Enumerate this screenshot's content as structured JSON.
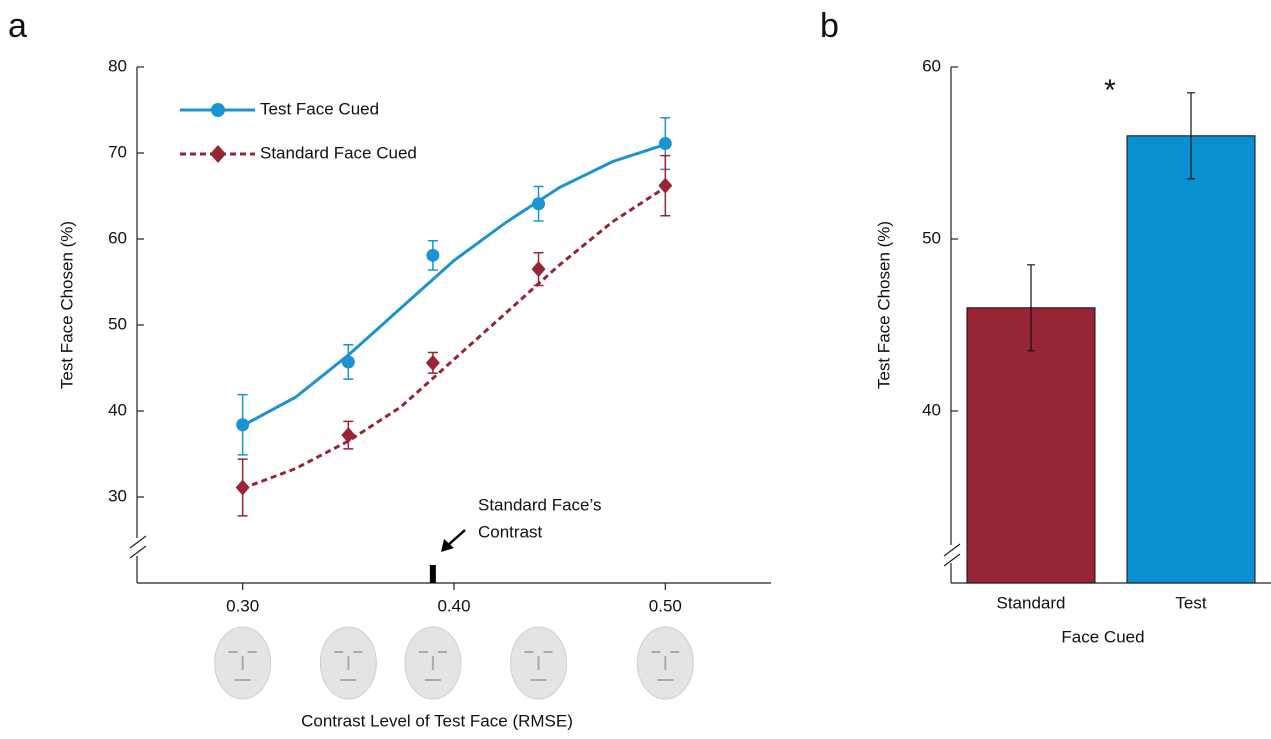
{
  "chart_data": [
    {
      "type": "line",
      "panel": "a",
      "xlabel": "Contrast Level of Test Face (RMSE)",
      "ylabel": "Test Face Chosen (%)",
      "x": [
        0.3,
        0.35,
        0.39,
        0.44,
        0.5
      ],
      "fit_x": [
        0.3,
        0.325,
        0.35,
        0.375,
        0.4,
        0.425,
        0.45,
        0.475,
        0.5
      ],
      "series": [
        {
          "name": "Test Face Cued",
          "color": "#1a94d0",
          "marker": "circle",
          "line_style": "solid",
          "values": [
            38.4,
            45.7,
            58.1,
            64.1,
            71.1
          ],
          "errors": [
            3.5,
            2.0,
            1.7,
            2.0,
            3.0
          ],
          "fit": [
            38.3,
            41.6,
            46.5,
            52.0,
            57.5,
            62.0,
            66.0,
            69.0,
            71.0
          ]
        },
        {
          "name": "Standard Face Cued",
          "color": "#962536",
          "marker": "diamond",
          "line_style": "dashed",
          "values": [
            31.1,
            37.2,
            45.6,
            56.5,
            66.2
          ],
          "errors": [
            3.3,
            1.6,
            1.2,
            1.9,
            3.5
          ],
          "fit": [
            31.0,
            33.3,
            36.5,
            40.5,
            46.0,
            51.5,
            57.0,
            62.0,
            66.0
          ]
        }
      ],
      "xlim": [
        0.25,
        0.55
      ],
      "xticks": [
        {
          "value": 0.3,
          "label": "0.30"
        },
        {
          "value": 0.4,
          "label": "0.40"
        },
        {
          "value": 0.5,
          "label": "0.50"
        }
      ],
      "ylim": [
        20,
        80
      ],
      "yticks": [
        30,
        40,
        50,
        60,
        70,
        80
      ],
      "legend": "top-left",
      "annotation": {
        "lines": [
          "Standard Face’s",
          "Contrast"
        ],
        "x": 0.39
      }
    },
    {
      "type": "bar",
      "panel": "b",
      "xlabel": "Face Cued",
      "ylabel": "Test Face Chosen (%)",
      "categories": [
        "Standard",
        "Test"
      ],
      "values": [
        46,
        56
      ],
      "errors": [
        2.5,
        2.5
      ],
      "colors": [
        "#962536",
        "#0a8fd0"
      ],
      "ylim": [
        30,
        60
      ],
      "yticks": [
        40,
        50,
        60
      ],
      "annotation": "*"
    }
  ]
}
